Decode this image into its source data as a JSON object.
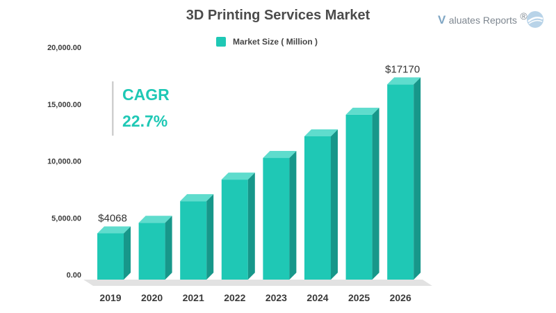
{
  "colors": {
    "accent": "#1fc8b5",
    "bar_front": "#1fc8b5",
    "bar_side": "#17978a",
    "bar_top": "#5fdccd",
    "floor": "#e2e2e2",
    "cagr_bar": "#cfcfcf",
    "brand_icon": "#b8d3e8"
  },
  "brand": {
    "v_letter": "V",
    "name": "aluates Reports",
    "mark": "®",
    "icon": "swoosh-circle-icon"
  },
  "callout": {
    "label": "CAGR",
    "value": "22.7%"
  },
  "chart_data": {
    "type": "bar",
    "title": "3D Printing Services Market",
    "categories": [
      "2019",
      "2020",
      "2021",
      "2022",
      "2023",
      "2024",
      "2025",
      "2026"
    ],
    "series": [
      {
        "name": "Market Size ( Million )",
        "values": [
          4068,
          5000,
          6900,
          8800,
          10700,
          12600,
          14500,
          17170
        ]
      }
    ],
    "y_ticks": [
      "0.00",
      "5,000.00",
      "10,000.00",
      "15,000.00",
      "20,000.00"
    ],
    "ylim": [
      0,
      20000
    ],
    "data_labels": [
      {
        "category": "2019",
        "text": "$4068"
      },
      {
        "category": "2026",
        "text": "$17170"
      }
    ],
    "legend_position": "top-center",
    "grid": false,
    "style": "3d-bar"
  }
}
